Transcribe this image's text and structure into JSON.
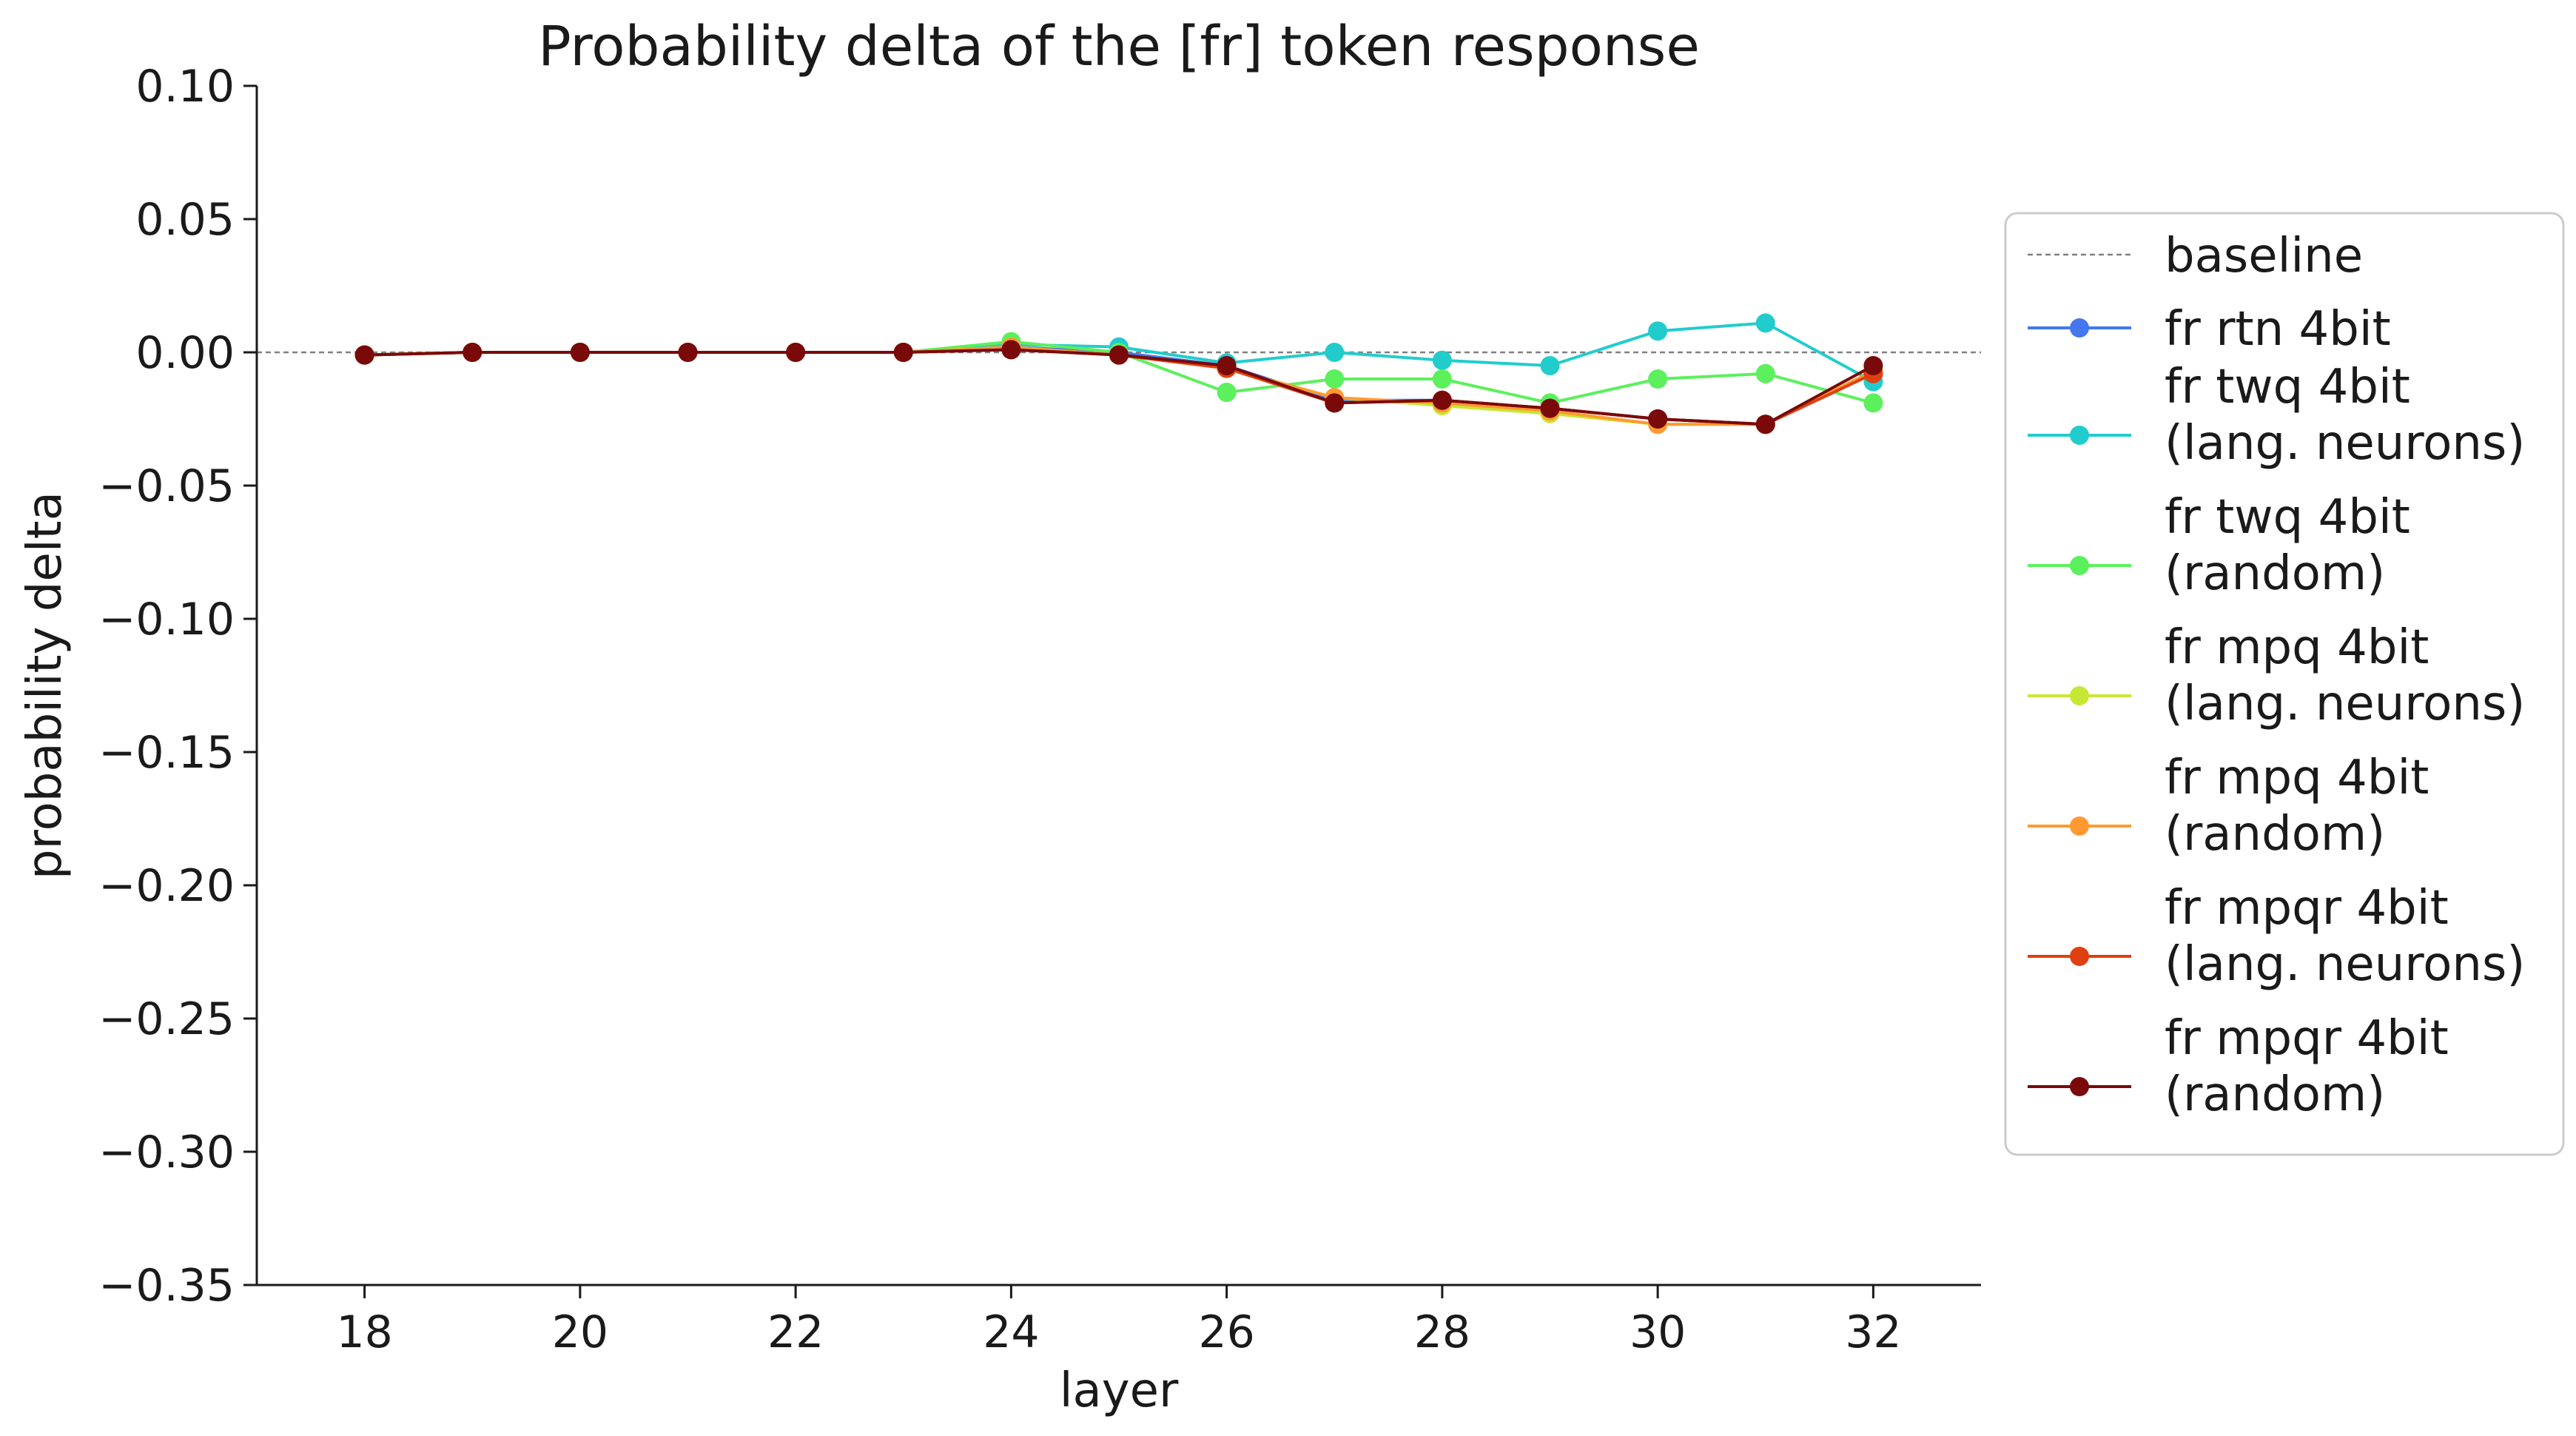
{
  "chart_data": {
    "type": "line",
    "title": "Probability delta of the [fr] token response",
    "xlabel": "layer",
    "ylabel": "probability delta",
    "xlim": [
      17,
      33
    ],
    "ylim": [
      -0.35,
      0.1
    ],
    "xticks": [
      18,
      20,
      22,
      24,
      26,
      28,
      30,
      32
    ],
    "xtick_labels": [
      "18",
      "20",
      "22",
      "24",
      "26",
      "28",
      "30",
      "32"
    ],
    "yticks": [
      0.1,
      0.05,
      0.0,
      -0.05,
      -0.1,
      -0.15,
      -0.2,
      -0.25,
      -0.3,
      -0.35
    ],
    "ytick_labels": [
      "0.10",
      "0.05",
      "0.00",
      "−0.05",
      "−0.10",
      "−0.15",
      "−0.20",
      "−0.25",
      "−0.30",
      "−0.35"
    ],
    "grid": false,
    "legend_position": "right",
    "baseline": {
      "name": "baseline",
      "value": 0.0,
      "color": "#808080",
      "style": "dashed"
    },
    "x": [
      18,
      19,
      20,
      21,
      22,
      23,
      24,
      25,
      26,
      27,
      28,
      29,
      30,
      31,
      32
    ],
    "series": [
      {
        "name": [
          "fr rtn 4bit"
        ],
        "color": "#4477ee",
        "values": [
          -0.001,
          0.0,
          0.0,
          0.0,
          0.0,
          0.0,
          0.002,
          0.0,
          -0.005,
          -0.018,
          -0.018,
          -0.021,
          -0.025,
          -0.027,
          -0.008
        ]
      },
      {
        "name": [
          "fr twq 4bit",
          "(lang. neurons)"
        ],
        "color": "#22cccc",
        "values": [
          -0.001,
          0.0,
          0.0,
          0.0,
          0.0,
          0.0,
          0.003,
          0.002,
          -0.004,
          0.0,
          -0.003,
          -0.005,
          0.008,
          0.011,
          -0.011
        ]
      },
      {
        "name": [
          "fr twq 4bit",
          "(random)"
        ],
        "color": "#5cf05c",
        "values": [
          -0.001,
          0.0,
          0.0,
          0.0,
          0.0,
          0.0,
          0.004,
          0.0,
          -0.015,
          -0.01,
          -0.01,
          -0.019,
          -0.01,
          -0.008,
          -0.019
        ]
      },
      {
        "name": [
          "fr mpq 4bit",
          "(lang. neurons)"
        ],
        "color": "#c8e634",
        "values": [
          -0.001,
          0.0,
          0.0,
          0.0,
          0.0,
          0.0,
          0.002,
          -0.001,
          -0.006,
          -0.017,
          -0.02,
          -0.023,
          -0.027,
          -0.027,
          -0.007
        ]
      },
      {
        "name": [
          "fr mpq 4bit",
          "(random)"
        ],
        "color": "#ff9a30",
        "values": [
          -0.001,
          0.0,
          0.0,
          0.0,
          0.0,
          0.0,
          0.002,
          -0.001,
          -0.006,
          -0.017,
          -0.019,
          -0.022,
          -0.027,
          -0.027,
          -0.007
        ]
      },
      {
        "name": [
          "fr mpqr 4bit",
          "(lang. neurons)"
        ],
        "color": "#e04010",
        "values": [
          -0.001,
          0.0,
          0.0,
          0.0,
          0.0,
          0.0,
          0.001,
          -0.001,
          -0.006,
          -0.019,
          -0.018,
          -0.021,
          -0.025,
          -0.027,
          -0.008
        ]
      },
      {
        "name": [
          "fr mpqr 4bit",
          "(random)"
        ],
        "color": "#7a0a0a",
        "values": [
          -0.001,
          0.0,
          0.0,
          0.0,
          0.0,
          0.0,
          0.001,
          -0.001,
          -0.005,
          -0.019,
          -0.018,
          -0.021,
          -0.025,
          -0.027,
          -0.005
        ]
      }
    ]
  }
}
